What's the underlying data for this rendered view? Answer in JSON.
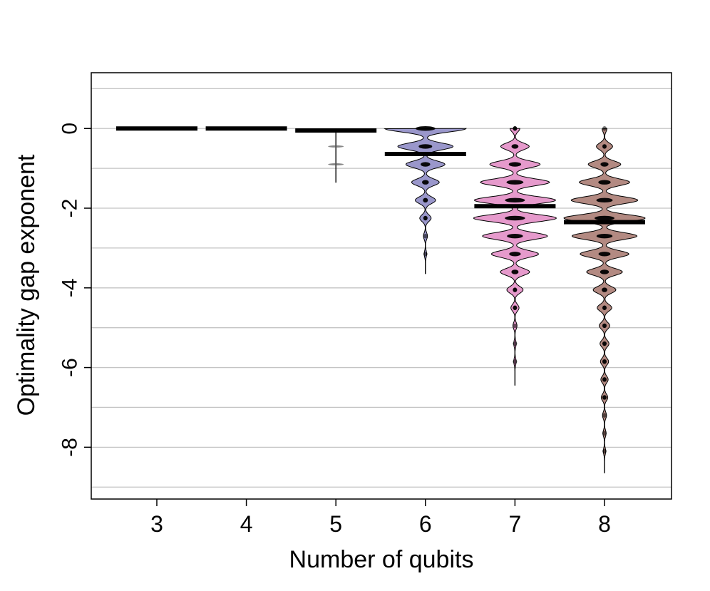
{
  "chart_data": {
    "type": "violin",
    "title": "",
    "xlabel": "Number of qubits",
    "ylabel": "Optimality gap exponent",
    "ylim": [
      -9.3,
      1.4
    ],
    "yticks": [
      0,
      -2,
      -4,
      -6,
      -8
    ],
    "grid": "horizontal",
    "categories": [
      "3",
      "4",
      "5",
      "6",
      "7",
      "8"
    ],
    "series": [
      {
        "category": "3",
        "color": "#000000",
        "median": 0.0,
        "min": 0.0,
        "max": 0.0,
        "levels": [
          0.0
        ],
        "density": [
          0.0
        ]
      },
      {
        "category": "4",
        "color": "#000000",
        "median": 0.0,
        "min": 0.0,
        "max": 0.0,
        "levels": [
          0.0
        ],
        "density": [
          0.0
        ]
      },
      {
        "category": "5",
        "color": "#000000",
        "median": -0.05,
        "min": -1.36,
        "max": 0.0,
        "levels": [
          0.0,
          -0.45,
          -0.9
        ],
        "density": [
          0.0,
          0.0,
          0.0
        ]
      },
      {
        "category": "6",
        "color": "#9a97cb",
        "median": -0.64,
        "min": -3.65,
        "max": 0.0,
        "levels": [
          0.0,
          -0.45,
          -0.9,
          -1.35,
          -1.8,
          -2.25,
          -2.7,
          -3.15
        ],
        "density": [
          1.0,
          0.68,
          0.48,
          0.34,
          0.25,
          0.14,
          0.05,
          0.03
        ]
      },
      {
        "category": "7",
        "color": "#e69acc",
        "median": -1.95,
        "min": -6.45,
        "max": 0.0,
        "levels": [
          0.0,
          -0.45,
          -0.9,
          -1.35,
          -1.8,
          -2.25,
          -2.7,
          -3.15,
          -3.6,
          -4.05,
          -4.5,
          -4.95,
          -5.4,
          -5.85
        ],
        "density": [
          0.12,
          0.35,
          0.62,
          0.85,
          1.0,
          1.02,
          0.8,
          0.58,
          0.36,
          0.2,
          0.1,
          0.05,
          0.03,
          0.03
        ]
      },
      {
        "category": "8",
        "color": "#b38a82",
        "median": -2.35,
        "min": -8.65,
        "max": 0.0,
        "levels": [
          0.0,
          -0.45,
          -0.9,
          -1.35,
          -1.8,
          -2.25,
          -2.7,
          -3.15,
          -3.6,
          -4.05,
          -4.5,
          -4.95,
          -5.4,
          -5.85,
          -6.3,
          -6.75,
          -7.2,
          -7.65,
          -8.1
        ],
        "density": [
          0.06,
          0.2,
          0.4,
          0.62,
          0.82,
          1.0,
          0.8,
          0.6,
          0.44,
          0.28,
          0.18,
          0.13,
          0.11,
          0.1,
          0.09,
          0.08,
          0.05,
          0.04,
          0.03
        ]
      }
    ]
  }
}
